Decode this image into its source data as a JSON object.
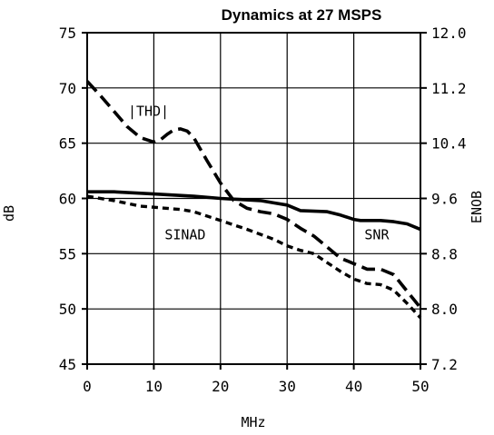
{
  "chart_data": {
    "type": "line",
    "title": "Dynamics at 27 MSPS",
    "xlabel": "MHz",
    "ylabel": "dB",
    "y2label": "ENOB",
    "xlim": [
      0,
      50
    ],
    "ylim": [
      45,
      75
    ],
    "y2lim": [
      7.2,
      12.0
    ],
    "grid": true,
    "xticks": [
      "0",
      "10",
      "20",
      "30",
      "40",
      "50"
    ],
    "yticks": [
      "45",
      "50",
      "55",
      "60",
      "65",
      "70",
      "75"
    ],
    "y2ticks": [
      "7.2",
      "8.0",
      "8.8",
      "9.6",
      "10.4",
      "11.2",
      "12.0"
    ],
    "annotations": [
      "|THD|",
      "SINAD",
      "SNR"
    ],
    "series": [
      {
        "name": "|THD|",
        "style": "long-dash",
        "x": [
          0,
          2,
          4,
          6,
          8,
          10,
          11,
          12,
          13,
          14,
          15,
          16,
          18,
          20,
          22,
          24,
          26,
          28,
          30,
          32,
          34,
          36,
          38,
          40,
          42,
          44,
          46,
          48,
          50
        ],
        "y": [
          70.6,
          69.3,
          67.9,
          66.5,
          65.5,
          65.1,
          65.3,
          65.8,
          66.2,
          66.3,
          66.1,
          65.5,
          63.4,
          61.4,
          59.8,
          59.1,
          58.8,
          58.6,
          58.1,
          57.3,
          56.6,
          55.6,
          54.6,
          54.1,
          53.6,
          53.6,
          53.1,
          51.6,
          50.1
        ]
      },
      {
        "name": "SINAD",
        "style": "short-dash",
        "x": [
          0,
          4,
          8,
          10,
          14,
          16,
          20,
          24,
          28,
          30,
          32,
          34,
          36,
          38,
          40,
          42,
          44,
          46,
          48,
          50
        ],
        "y": [
          60.2,
          59.8,
          59.3,
          59.2,
          59.0,
          58.8,
          58.0,
          57.2,
          56.3,
          55.7,
          55.3,
          55.0,
          54.2,
          53.4,
          52.7,
          52.3,
          52.2,
          51.7,
          50.5,
          49.2
        ]
      },
      {
        "name": "SNR",
        "style": "solid",
        "x": [
          0,
          4,
          10,
          16,
          20,
          26,
          28,
          30,
          32,
          36,
          38,
          40,
          41,
          44,
          46,
          48,
          50
        ],
        "y": [
          60.6,
          60.6,
          60.4,
          60.2,
          60.0,
          59.8,
          59.6,
          59.4,
          58.9,
          58.8,
          58.5,
          58.1,
          58.0,
          58.0,
          57.9,
          57.7,
          57.2
        ]
      }
    ]
  }
}
